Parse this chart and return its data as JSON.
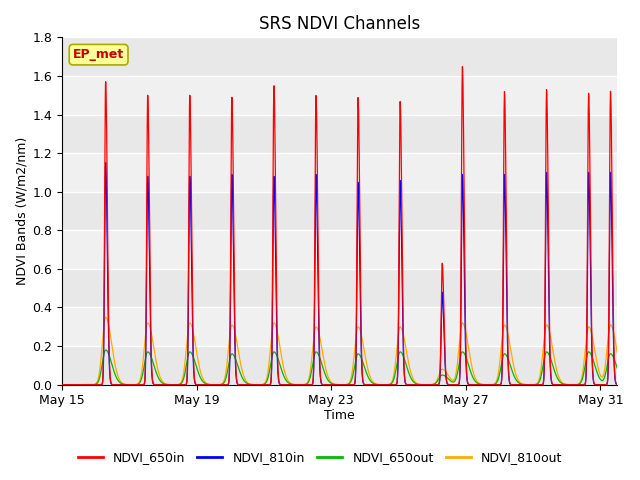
{
  "title": "SRS NDVI Channels",
  "xlabel": "Time",
  "ylabel": "NDVI Bands (W/m2/nm)",
  "ylim": [
    0.0,
    1.8
  ],
  "yticks": [
    0.0,
    0.2,
    0.4,
    0.6,
    0.8,
    1.0,
    1.2,
    1.4,
    1.6,
    1.8
  ],
  "xtick_labels": [
    "May 15",
    "May 19",
    "May 23",
    "May 27",
    "May 31"
  ],
  "xtick_positions": [
    0,
    4,
    8,
    12,
    16
  ],
  "colors": {
    "NDVI_650in": "#ff0000",
    "NDVI_810in": "#0000ff",
    "NDVI_650out": "#00bb00",
    "NDVI_810out": "#ffaa00"
  },
  "legend_labels": [
    "NDVI_650in",
    "NDVI_810in",
    "NDVI_650out",
    "NDVI_810out"
  ],
  "annotation_text": "EP_met",
  "annotation_color": "#cc0000",
  "annotation_bg": "#ffff99",
  "title_fontsize": 12,
  "axis_label_fontsize": 9,
  "tick_fontsize": 9,
  "bg_color": "#e8e8e8",
  "spike_times": [
    1.3,
    2.55,
    3.8,
    5.05,
    6.3,
    7.55,
    8.8,
    10.05,
    11.3,
    11.9,
    13.15,
    14.4,
    15.65,
    16.3
  ],
  "peaks_red": [
    1.57,
    1.5,
    1.5,
    1.49,
    1.55,
    1.5,
    1.49,
    1.47,
    0.63,
    1.65,
    1.52,
    1.53,
    1.51,
    1.52
  ],
  "peaks_blue": [
    1.15,
    1.08,
    1.08,
    1.09,
    1.08,
    1.09,
    1.05,
    1.06,
    0.48,
    1.09,
    1.09,
    1.1,
    1.1,
    1.1
  ],
  "peaks_green": [
    0.18,
    0.17,
    0.17,
    0.16,
    0.17,
    0.17,
    0.16,
    0.17,
    0.05,
    0.17,
    0.16,
    0.17,
    0.17,
    0.16
  ],
  "peaks_orange": [
    0.35,
    0.32,
    0.32,
    0.31,
    0.32,
    0.3,
    0.3,
    0.3,
    0.08,
    0.32,
    0.31,
    0.31,
    0.3,
    0.31
  ],
  "sigma_in_l": 0.03,
  "sigma_in_r": 0.05,
  "sigma_out_l": 0.1,
  "sigma_out_r": 0.18,
  "band_color_light": "#dcdcdc",
  "band_color_dark": "#c8c8c8"
}
